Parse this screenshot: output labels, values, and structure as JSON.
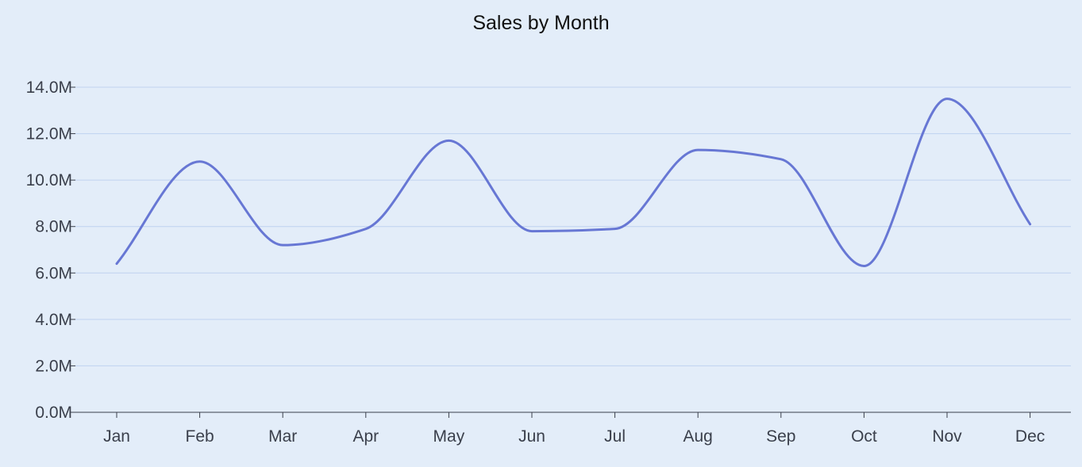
{
  "chart_data": {
    "type": "line",
    "title": "Sales by Month",
    "xlabel": "",
    "ylabel": "",
    "categories": [
      "Jan",
      "Feb",
      "Mar",
      "Apr",
      "May",
      "Jun",
      "Jul",
      "Aug",
      "Sep",
      "Oct",
      "Nov",
      "Dec"
    ],
    "series": [
      {
        "name": "",
        "values": [
          6.4,
          10.8,
          7.2,
          7.9,
          11.7,
          7.8,
          7.9,
          11.3,
          10.9,
          6.3,
          13.5,
          8.1
        ]
      }
    ],
    "y_unit": "M",
    "ylim": [
      0,
      14
    ],
    "yticks": [
      0,
      2,
      4,
      6,
      8,
      10,
      12,
      14
    ],
    "y_tick_labels": [
      "0.0M",
      "2.0M",
      "4.0M",
      "6.0M",
      "8.0M",
      "10.0M",
      "12.0M",
      "14.0M"
    ],
    "grid": true,
    "curve": "smooth",
    "line_color": "#6777d4",
    "grid_color": "#c0d2f0",
    "axis_color": "#3a3f4b",
    "legend": "none"
  }
}
